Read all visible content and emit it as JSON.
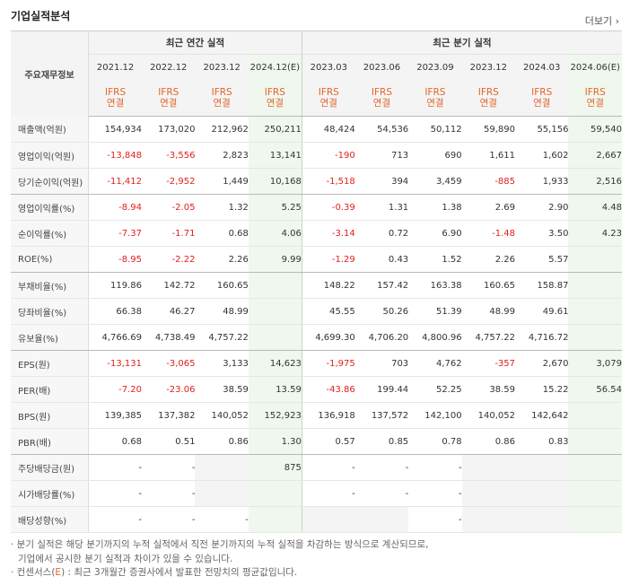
{
  "title": "기업실적분석",
  "more_label": "더보기",
  "more_icon": "chevron-right-icon",
  "header": {
    "row_label": "주요재무정보",
    "annual_group": "최근 연간 실적",
    "quarter_group": "최근 분기 실적",
    "periods": [
      "2021.12",
      "2022.12",
      "2023.12",
      "2024.12(E)",
      "2023.03",
      "2023.06",
      "2023.09",
      "2023.12",
      "2024.03",
      "2024.06(E)"
    ],
    "ifrs": "IFRS",
    "consolidated": "연결"
  },
  "colors": {
    "negative": "#e02020",
    "ifrs": "#e0652a",
    "estimate_bg": "#f0f7ee"
  },
  "rows": [
    {
      "label": "매출액(억원)",
      "values": [
        "154,934",
        "173,020",
        "212,962",
        "250,211",
        "48,424",
        "54,536",
        "50,112",
        "59,890",
        "55,156",
        "59,540"
      ]
    },
    {
      "label": "영업이익(억원)",
      "values": [
        "-13,848",
        "-3,556",
        "2,823",
        "13,141",
        "-190",
        "713",
        "690",
        "1,611",
        "1,602",
        "2,667"
      ]
    },
    {
      "label": "당기순이익(억원)",
      "values": [
        "-11,412",
        "-2,952",
        "1,449",
        "10,168",
        "-1,518",
        "394",
        "3,459",
        "-885",
        "1,933",
        "2,516"
      ]
    },
    {
      "label": "영업이익률(%)",
      "values": [
        "-8.94",
        "-2.05",
        "1.32",
        "5.25",
        "-0.39",
        "1.31",
        "1.38",
        "2.69",
        "2.90",
        "4.48"
      ]
    },
    {
      "label": "순이익률(%)",
      "values": [
        "-7.37",
        "-1.71",
        "0.68",
        "4.06",
        "-3.14",
        "0.72",
        "6.90",
        "-1.48",
        "3.50",
        "4.23"
      ]
    },
    {
      "label": "ROE(%)",
      "values": [
        "-8.95",
        "-2.22",
        "2.26",
        "9.99",
        "-1.29",
        "0.43",
        "1.52",
        "2.26",
        "5.57",
        ""
      ]
    },
    {
      "label": "부채비율(%)",
      "values": [
        "119.86",
        "142.72",
        "160.65",
        "",
        "148.22",
        "157.42",
        "163.38",
        "160.65",
        "158.87",
        ""
      ]
    },
    {
      "label": "당좌비율(%)",
      "values": [
        "66.38",
        "46.27",
        "48.99",
        "",
        "45.55",
        "50.26",
        "51.39",
        "48.99",
        "49.61",
        ""
      ]
    },
    {
      "label": "유보율(%)",
      "values": [
        "4,766.69",
        "4,738.49",
        "4,757.22",
        "",
        "4,699.30",
        "4,706.20",
        "4,800.96",
        "4,757.22",
        "4,716.72",
        ""
      ]
    },
    {
      "label": "EPS(원)",
      "values": [
        "-13,131",
        "-3,065",
        "3,133",
        "14,623",
        "-1,975",
        "703",
        "4,762",
        "-357",
        "2,670",
        "3,079"
      ]
    },
    {
      "label": "PER(배)",
      "values": [
        "-7.20",
        "-23.06",
        "38.59",
        "13.59",
        "-43.86",
        "199.44",
        "52.25",
        "38.59",
        "15.22",
        "56.54"
      ]
    },
    {
      "label": "BPS(원)",
      "values": [
        "139,385",
        "137,382",
        "140,052",
        "152,923",
        "136,918",
        "137,572",
        "142,100",
        "140,052",
        "142,642",
        ""
      ]
    },
    {
      "label": "PBR(배)",
      "values": [
        "0.68",
        "0.51",
        "0.86",
        "1.30",
        "0.57",
        "0.85",
        "0.78",
        "0.86",
        "0.83",
        ""
      ]
    },
    {
      "label": "주당배당금(원)",
      "values": [
        "-",
        "-",
        "",
        "875",
        "-",
        "-",
        "-",
        "",
        "",
        ""
      ]
    },
    {
      "label": "시가배당률(%)",
      "values": [
        "-",
        "-",
        "",
        "",
        "-",
        "-",
        "-",
        "",
        "",
        ""
      ]
    },
    {
      "label": "배당성향(%)",
      "values": [
        "-",
        "-",
        "-",
        "",
        "",
        "",
        "-",
        "",
        "",
        ""
      ]
    }
  ],
  "notes": {
    "line1": "· 분기 실적은 해당 분기까지의 누적 실적에서 직전 분기까지의 누적 실적을 차감하는 방식으로 계산되므로,",
    "line2": "기업에서 공시한 분기 실적과 차이가 있을 수 있습니다.",
    "line3_a": "· 컨센서스(",
    "line3_e": "E",
    "line3_b": ") : 최근 3개월간 증권사에서 발표한 전망치의 평균값입니다."
  }
}
